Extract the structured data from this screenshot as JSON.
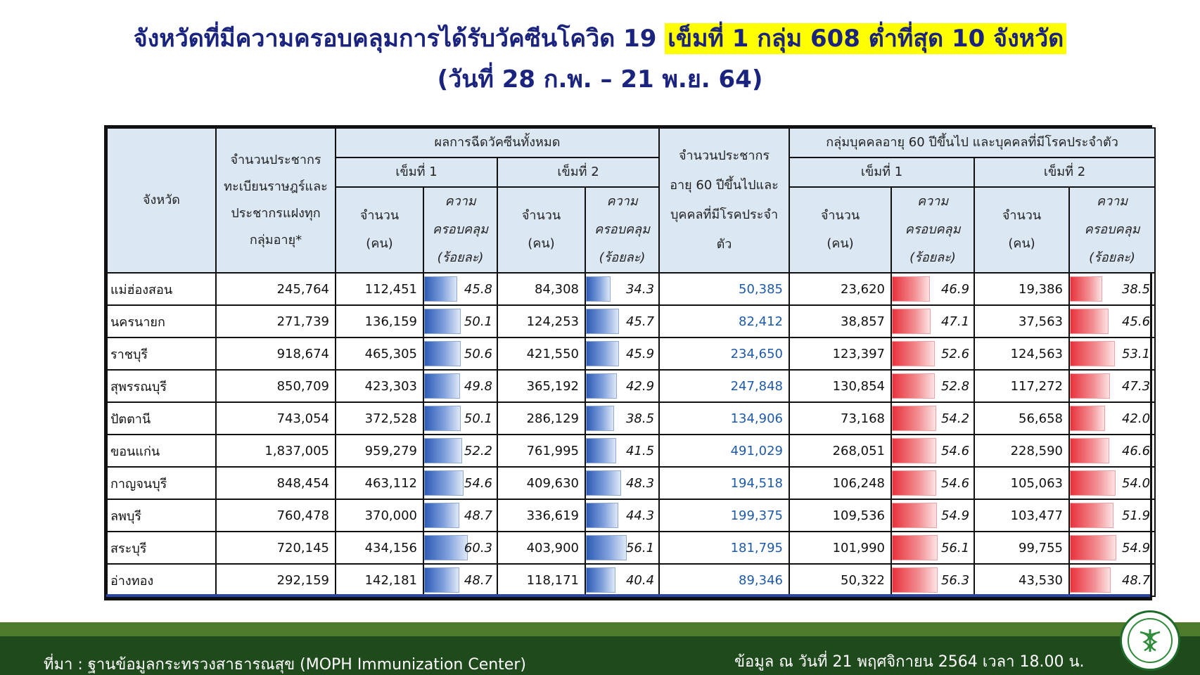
{
  "title": {
    "line1_main": "จังหวัดที่มีความครอบคลุมการได้รับวัคซีนโควิด 19",
    "line1_highlight": "เข็มที่ 1 กลุ่ม 608 ต่ำที่สุด 10 จังหวัด",
    "line2": "(วันที่ 28 ก.พ. – 21 พ.ย. 64)"
  },
  "colors": {
    "title": "#1a237e",
    "highlight": "#ffff00",
    "header_bg": "#dbe7f3",
    "bar_blue": "#2d5bb5",
    "bar_red": "#e8323c",
    "footer_bg": "#1f4a1c"
  },
  "headers": {
    "province": "จังหวัด",
    "population": "จำนวนประชากรทะเบียนราษฎร์และประชากรแฝงทุกกลุ่มอายุ*",
    "all_results": "ผลการฉีดวัคซีนทั้งหมด",
    "dose1": "เข็มที่ 1",
    "dose2": "เข็มที่ 2",
    "count": "จำนวน (คน)",
    "coverage": "ความครอบคลุม (ร้อยละ)",
    "pop608": "จำนวนประชากรอายุ 60 ปีขึ้นไปและบุคคลที่มีโรคประจำตัว",
    "group608": "กลุ่มบุคคลอายุ 60 ปีขึ้นไป และบุคคลที่มีโรคประจำตัว"
  },
  "rows": [
    {
      "province": "แม่ฮ่องสอน",
      "population": "245,764",
      "d1_count": "112,451",
      "d1_pct": "45.8",
      "d2_count": "84,308",
      "d2_pct": "34.3",
      "pop608": "50,385",
      "g_d1_count": "23,620",
      "g_d1_pct": "46.9",
      "g_d2_count": "19,386",
      "g_d2_pct": "38.5"
    },
    {
      "province": "นครนายก",
      "population": "271,739",
      "d1_count": "136,159",
      "d1_pct": "50.1",
      "d2_count": "124,253",
      "d2_pct": "45.7",
      "pop608": "82,412",
      "g_d1_count": "38,857",
      "g_d1_pct": "47.1",
      "g_d2_count": "37,563",
      "g_d2_pct": "45.6"
    },
    {
      "province": "ราชบุรี",
      "population": "918,674",
      "d1_count": "465,305",
      "d1_pct": "50.6",
      "d2_count": "421,550",
      "d2_pct": "45.9",
      "pop608": "234,650",
      "g_d1_count": "123,397",
      "g_d1_pct": "52.6",
      "g_d2_count": "124,563",
      "g_d2_pct": "53.1"
    },
    {
      "province": "สุพรรณบุรี",
      "population": "850,709",
      "d1_count": "423,303",
      "d1_pct": "49.8",
      "d2_count": "365,192",
      "d2_pct": "42.9",
      "pop608": "247,848",
      "g_d1_count": "130,854",
      "g_d1_pct": "52.8",
      "g_d2_count": "117,272",
      "g_d2_pct": "47.3"
    },
    {
      "province": "ปัตตานี",
      "population": "743,054",
      "d1_count": "372,528",
      "d1_pct": "50.1",
      "d2_count": "286,129",
      "d2_pct": "38.5",
      "pop608": "134,906",
      "g_d1_count": "73,168",
      "g_d1_pct": "54.2",
      "g_d2_count": "56,658",
      "g_d2_pct": "42.0"
    },
    {
      "province": "ขอนแก่น",
      "population": "1,837,005",
      "d1_count": "959,279",
      "d1_pct": "52.2",
      "d2_count": "761,995",
      "d2_pct": "41.5",
      "pop608": "491,029",
      "g_d1_count": "268,051",
      "g_d1_pct": "54.6",
      "g_d2_count": "228,590",
      "g_d2_pct": "46.6"
    },
    {
      "province": "กาญจนบุรี",
      "population": "848,454",
      "d1_count": "463,112",
      "d1_pct": "54.6",
      "d2_count": "409,630",
      "d2_pct": "48.3",
      "pop608": "194,518",
      "g_d1_count": "106,248",
      "g_d1_pct": "54.6",
      "g_d2_count": "105,063",
      "g_d2_pct": "54.0"
    },
    {
      "province": "ลพบุรี",
      "population": "760,478",
      "d1_count": "370,000",
      "d1_pct": "48.7",
      "d2_count": "336,619",
      "d2_pct": "44.3",
      "pop608": "199,375",
      "g_d1_count": "109,536",
      "g_d1_pct": "54.9",
      "g_d2_count": "103,477",
      "g_d2_pct": "51.9"
    },
    {
      "province": "สระบุรี",
      "population": "720,145",
      "d1_count": "434,156",
      "d1_pct": "60.3",
      "d2_count": "403,900",
      "d2_pct": "56.1",
      "pop608": "181,795",
      "g_d1_count": "101,990",
      "g_d1_pct": "56.1",
      "g_d2_count": "99,755",
      "g_d2_pct": "54.9"
    },
    {
      "province": "อ่างทอง",
      "population": "292,159",
      "d1_count": "142,181",
      "d1_pct": "48.7",
      "d2_count": "118,171",
      "d2_pct": "40.4",
      "pop608": "89,346",
      "g_d1_count": "50,322",
      "g_d1_pct": "56.3",
      "g_d2_count": "43,530",
      "g_d2_pct": "48.7"
    }
  ],
  "footer": {
    "source": "ที่มา : ฐานข้อมูลกระทรวงสาธารณสุข (MOPH Immunization Center)",
    "date": "ข้อมูล ณ วันที่ 21 พฤศจิกายน 2564 เวลา 18.00 น."
  },
  "logo_icon": "moph-seal-icon"
}
